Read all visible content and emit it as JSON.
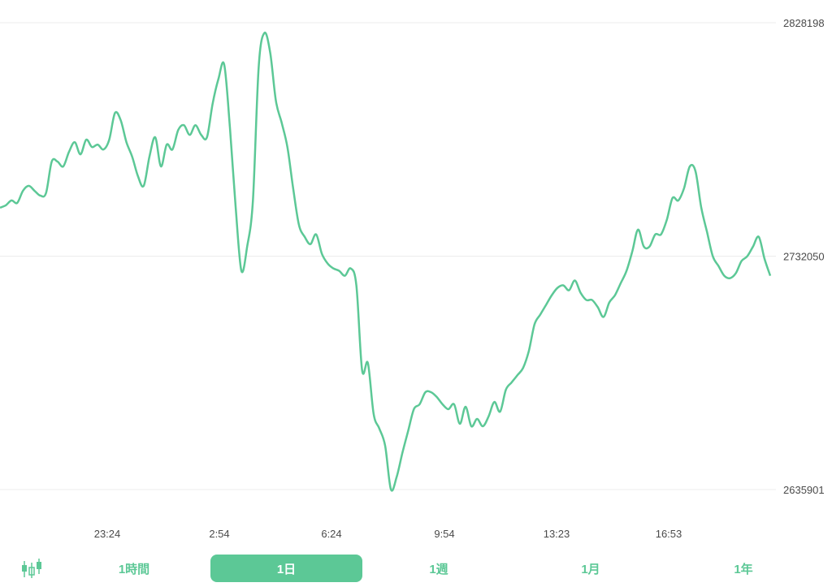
{
  "chart_data": {
    "type": "line",
    "color": "#5cc896",
    "y_ticks": [
      "2828198",
      "2732050",
      "2635901"
    ],
    "y_tick_values": [
      2828198,
      2732050,
      2635901
    ],
    "x_ticks": [
      "23:24",
      "2:54",
      "6:24",
      "9:54",
      "13:23",
      "16:53"
    ],
    "ylim": [
      2635901,
      2828198
    ],
    "grid": true,
    "series": [
      {
        "values": [
          2752000,
          2753000,
          2755000,
          2754000,
          2759000,
          2761000,
          2759000,
          2757000,
          2758000,
          2771000,
          2771000,
          2769000,
          2775000,
          2779000,
          2774000,
          2780000,
          2777000,
          2778000,
          2776000,
          2780000,
          2791000,
          2788000,
          2779000,
          2773000,
          2765000,
          2761000,
          2773000,
          2781000,
          2769000,
          2778000,
          2776000,
          2784000,
          2786000,
          2782000,
          2786000,
          2782000,
          2781000,
          2795000,
          2805000,
          2811000,
          2785000,
          2752000,
          2726000,
          2736000,
          2755000,
          2810000,
          2824000,
          2816000,
          2796000,
          2787000,
          2777000,
          2760000,
          2745000,
          2740000,
          2737000,
          2741000,
          2733000,
          2729000,
          2727000,
          2726000,
          2724000,
          2727000,
          2720000,
          2685000,
          2688000,
          2667000,
          2661000,
          2654000,
          2636000,
          2641000,
          2651000,
          2660000,
          2669000,
          2671000,
          2676000,
          2676000,
          2674000,
          2671000,
          2669000,
          2671000,
          2663000,
          2670000,
          2662000,
          2665000,
          2662000,
          2666000,
          2672000,
          2668000,
          2677000,
          2680000,
          2683000,
          2686000,
          2693000,
          2704000,
          2708000,
          2712000,
          2716000,
          2719000,
          2720000,
          2718000,
          2722000,
          2717000,
          2714000,
          2714000,
          2711000,
          2707000,
          2713000,
          2716000,
          2721000,
          2726000,
          2734000,
          2743000,
          2736000,
          2736000,
          2741000,
          2741000,
          2747000,
          2756000,
          2755000,
          2760000,
          2769000,
          2767000,
          2752000,
          2742000,
          2732000,
          2728000,
          2724000,
          2723000,
          2725000,
          2730000,
          2732000,
          2736000,
          2740000,
          2731000,
          2724000
        ]
      }
    ]
  },
  "timeframes": {
    "hour": "1時間",
    "day": "1日",
    "week": "1週",
    "month": "1月",
    "year": "1年"
  },
  "active_timeframe": "1日",
  "icons": {
    "candle_toggle": "candlestick-icon"
  }
}
